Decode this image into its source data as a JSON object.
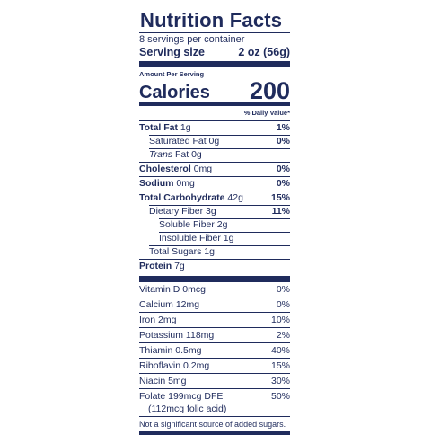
{
  "title": "Nutrition Facts",
  "servings_per_container": "8 servings per container",
  "serving_size": {
    "label": "Serving size",
    "value": "2 oz (56g)"
  },
  "amount_per_serving": "Amount Per Serving",
  "calories": {
    "label": "Calories",
    "value": "200"
  },
  "daily_value_header": "% Daily Value*",
  "nutrients": [
    {
      "name": "Total Fat",
      "amount": "1g",
      "dv": "1%"
    },
    {
      "name": "Saturated Fat",
      "amount": "0g",
      "dv": "0%"
    },
    {
      "name": "Trans",
      "amount": "Fat 0g",
      "dv": ""
    },
    {
      "name": "Cholesterol",
      "amount": "0mg",
      "dv": "0%"
    },
    {
      "name": "Sodium",
      "amount": "0mg",
      "dv": "0%"
    },
    {
      "name": "Total Carbohydrate",
      "amount": "42g",
      "dv": "15%"
    },
    {
      "name": "Dietary Fiber",
      "amount": "3g",
      "dv": "11%"
    },
    {
      "name": "Soluble Fiber",
      "amount": "2g",
      "dv": ""
    },
    {
      "name": "Insoluble Fiber",
      "amount": "1g",
      "dv": ""
    },
    {
      "name": "Total Sugars",
      "amount": "1g",
      "dv": ""
    },
    {
      "name": "Protein",
      "amount": "7g",
      "dv": ""
    }
  ],
  "vitamins": [
    {
      "label": "Vitamin D 0mcg",
      "dv": "0%"
    },
    {
      "label": "Calcium 12mg",
      "dv": "0%"
    },
    {
      "label": "Iron 2mg",
      "dv": "10%"
    },
    {
      "label": "Potassium 118mg",
      "dv": "2%"
    },
    {
      "label": "Thiamin 0.5mg",
      "dv": "40%"
    },
    {
      "label": "Riboflavin 0.2mg",
      "dv": "15%"
    },
    {
      "label": "Niacin 5mg",
      "dv": "30%"
    },
    {
      "label": "Folate 199mcg DFE",
      "sublabel": "(112mcg folic acid)",
      "dv": "50%"
    }
  ],
  "footnote": "Not a significant source of added sugars.",
  "colors": {
    "ink": "#1f2b5c",
    "background": "#ffffff"
  }
}
